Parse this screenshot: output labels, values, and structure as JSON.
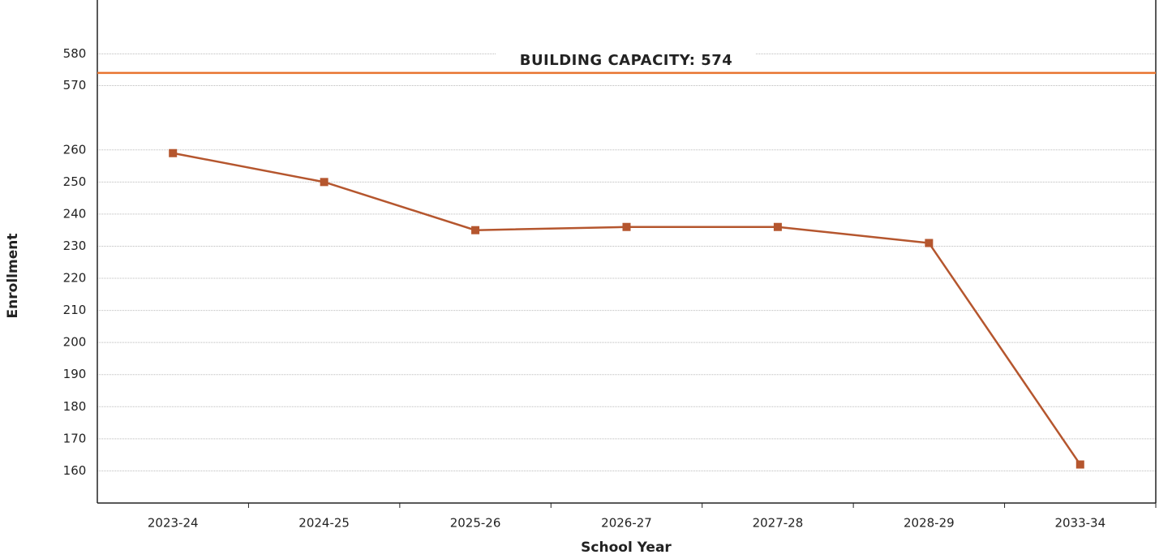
{
  "chart_data": {
    "type": "line",
    "x_label": "School Year",
    "y_label": "Enrollment",
    "categories": [
      "2023-24",
      "2024-25",
      "2025-26",
      "2026-27",
      "2027-28",
      "2028-29",
      "2033-34"
    ],
    "series": [
      {
        "color": "#b5562e",
        "values": [
          259,
          250,
          235,
          236,
          236,
          231,
          162
        ]
      }
    ],
    "ylim": [
      150,
      265
    ],
    "yticks": [
      160,
      170,
      180,
      190,
      200,
      210,
      220,
      230,
      240,
      250,
      260
    ],
    "axis_break": {
      "ylim": [
        565,
        597
      ],
      "yticks": [
        570,
        580
      ]
    },
    "annotation": {
      "text": "BUILDING CAPACITY: 574",
      "value": 574,
      "color": "#e8742f"
    },
    "grid": true
  }
}
